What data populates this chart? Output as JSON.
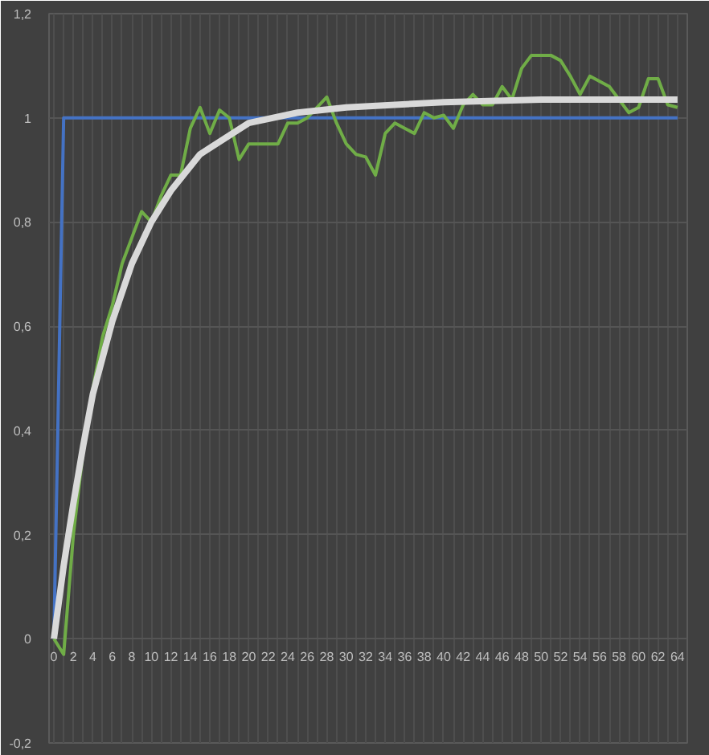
{
  "chart_data": {
    "type": "line",
    "xlim": [
      -0.5,
      65
    ],
    "ylim": [
      -0.2,
      1.2
    ],
    "xticks": [
      0,
      2,
      4,
      6,
      8,
      10,
      12,
      14,
      16,
      18,
      20,
      22,
      24,
      26,
      28,
      30,
      32,
      34,
      36,
      38,
      40,
      42,
      44,
      46,
      48,
      50,
      52,
      54,
      56,
      58,
      60,
      62,
      64
    ],
    "yticks": [
      {
        "value": -0.2,
        "label": "-0,2"
      },
      0,
      {
        "value": 0.2,
        "label": "0,2"
      },
      {
        "value": 0.4,
        "label": "0,4"
      },
      {
        "value": 0.6,
        "label": "0,6"
      },
      {
        "value": 0.8,
        "label": "0,8"
      },
      1,
      {
        "value": 1.2,
        "label": "1,2"
      }
    ],
    "grid": true,
    "marker": "none",
    "line_style": "solid",
    "series": [
      {
        "color": "#4472c4",
        "x": [
          0,
          1,
          64
        ],
        "values": [
          0,
          1,
          1
        ]
      },
      {
        "color": "#70ad47",
        "x": [
          0,
          1,
          2,
          3,
          4,
          5,
          6,
          7,
          8,
          9,
          10,
          11,
          12,
          13,
          14,
          15,
          16,
          17,
          18,
          19,
          20,
          21,
          22,
          23,
          24,
          25,
          26,
          27,
          28,
          29,
          30,
          31,
          32,
          33,
          34,
          35,
          36,
          37,
          38,
          39,
          40,
          41,
          42,
          43,
          44,
          45,
          46,
          47,
          48,
          49,
          50,
          51,
          52,
          53,
          54,
          55,
          56,
          57,
          58,
          59,
          60,
          61,
          62,
          63,
          64
        ],
        "values": [
          0,
          -0.03,
          0.2,
          0.36,
          0.48,
          0.58,
          0.64,
          0.72,
          0.77,
          0.82,
          0.8,
          0.85,
          0.89,
          0.89,
          0.98,
          1.02,
          0.97,
          1.015,
          1.0,
          0.92,
          0.95,
          0.95,
          0.95,
          0.95,
          0.99,
          0.99,
          1.0,
          1.02,
          1.04,
          0.99,
          0.95,
          0.93,
          0.925,
          0.89,
          0.97,
          0.99,
          0.98,
          0.97,
          1.01,
          1.0,
          1.005,
          0.98,
          1.025,
          1.045,
          1.025,
          1.025,
          1.06,
          1.035,
          1.095,
          1.12,
          1.12,
          1.12,
          1.11,
          1.08,
          1.045,
          1.08,
          1.07,
          1.06,
          1.035,
          1.01,
          1.02,
          1.075,
          1.075,
          1.025,
          1.02
        ]
      },
      {
        "color": "#d9d9d9",
        "x": [
          0,
          1,
          2,
          3,
          4,
          6,
          8,
          10,
          12,
          15,
          20,
          25,
          30,
          40,
          50,
          64
        ],
        "values": [
          0,
          0.14,
          0.26,
          0.37,
          0.47,
          0.61,
          0.72,
          0.8,
          0.86,
          0.93,
          0.99,
          1.01,
          1.02,
          1.03,
          1.035,
          1.035
        ]
      }
    ]
  }
}
